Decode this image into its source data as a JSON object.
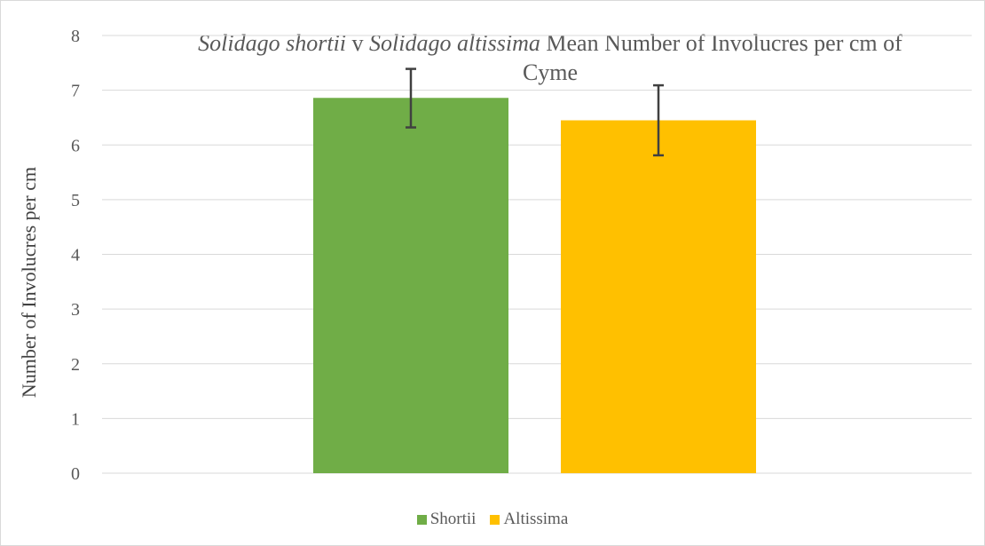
{
  "chart_data": {
    "type": "bar",
    "title_parts": {
      "species_a": "Solidago shortii",
      "connector": "v",
      "species_b": "Solidago altissima",
      "rest": "Mean Number of Involucres per cm of Cyme"
    },
    "ylabel": "Number of Involucres per cm",
    "xlabel": "",
    "ylim": [
      0,
      8
    ],
    "yticks": [
      0,
      1,
      2,
      3,
      4,
      5,
      6,
      7,
      8
    ],
    "grid": true,
    "legend_position": "bottom",
    "series": [
      {
        "name": "Shortii",
        "value": 6.86,
        "error_low": 6.32,
        "error_high": 7.39,
        "color": "#70ad47"
      },
      {
        "name": "Altissima",
        "value": 6.45,
        "error_low": 5.81,
        "error_high": 7.09,
        "color": "#ffc000"
      }
    ]
  }
}
